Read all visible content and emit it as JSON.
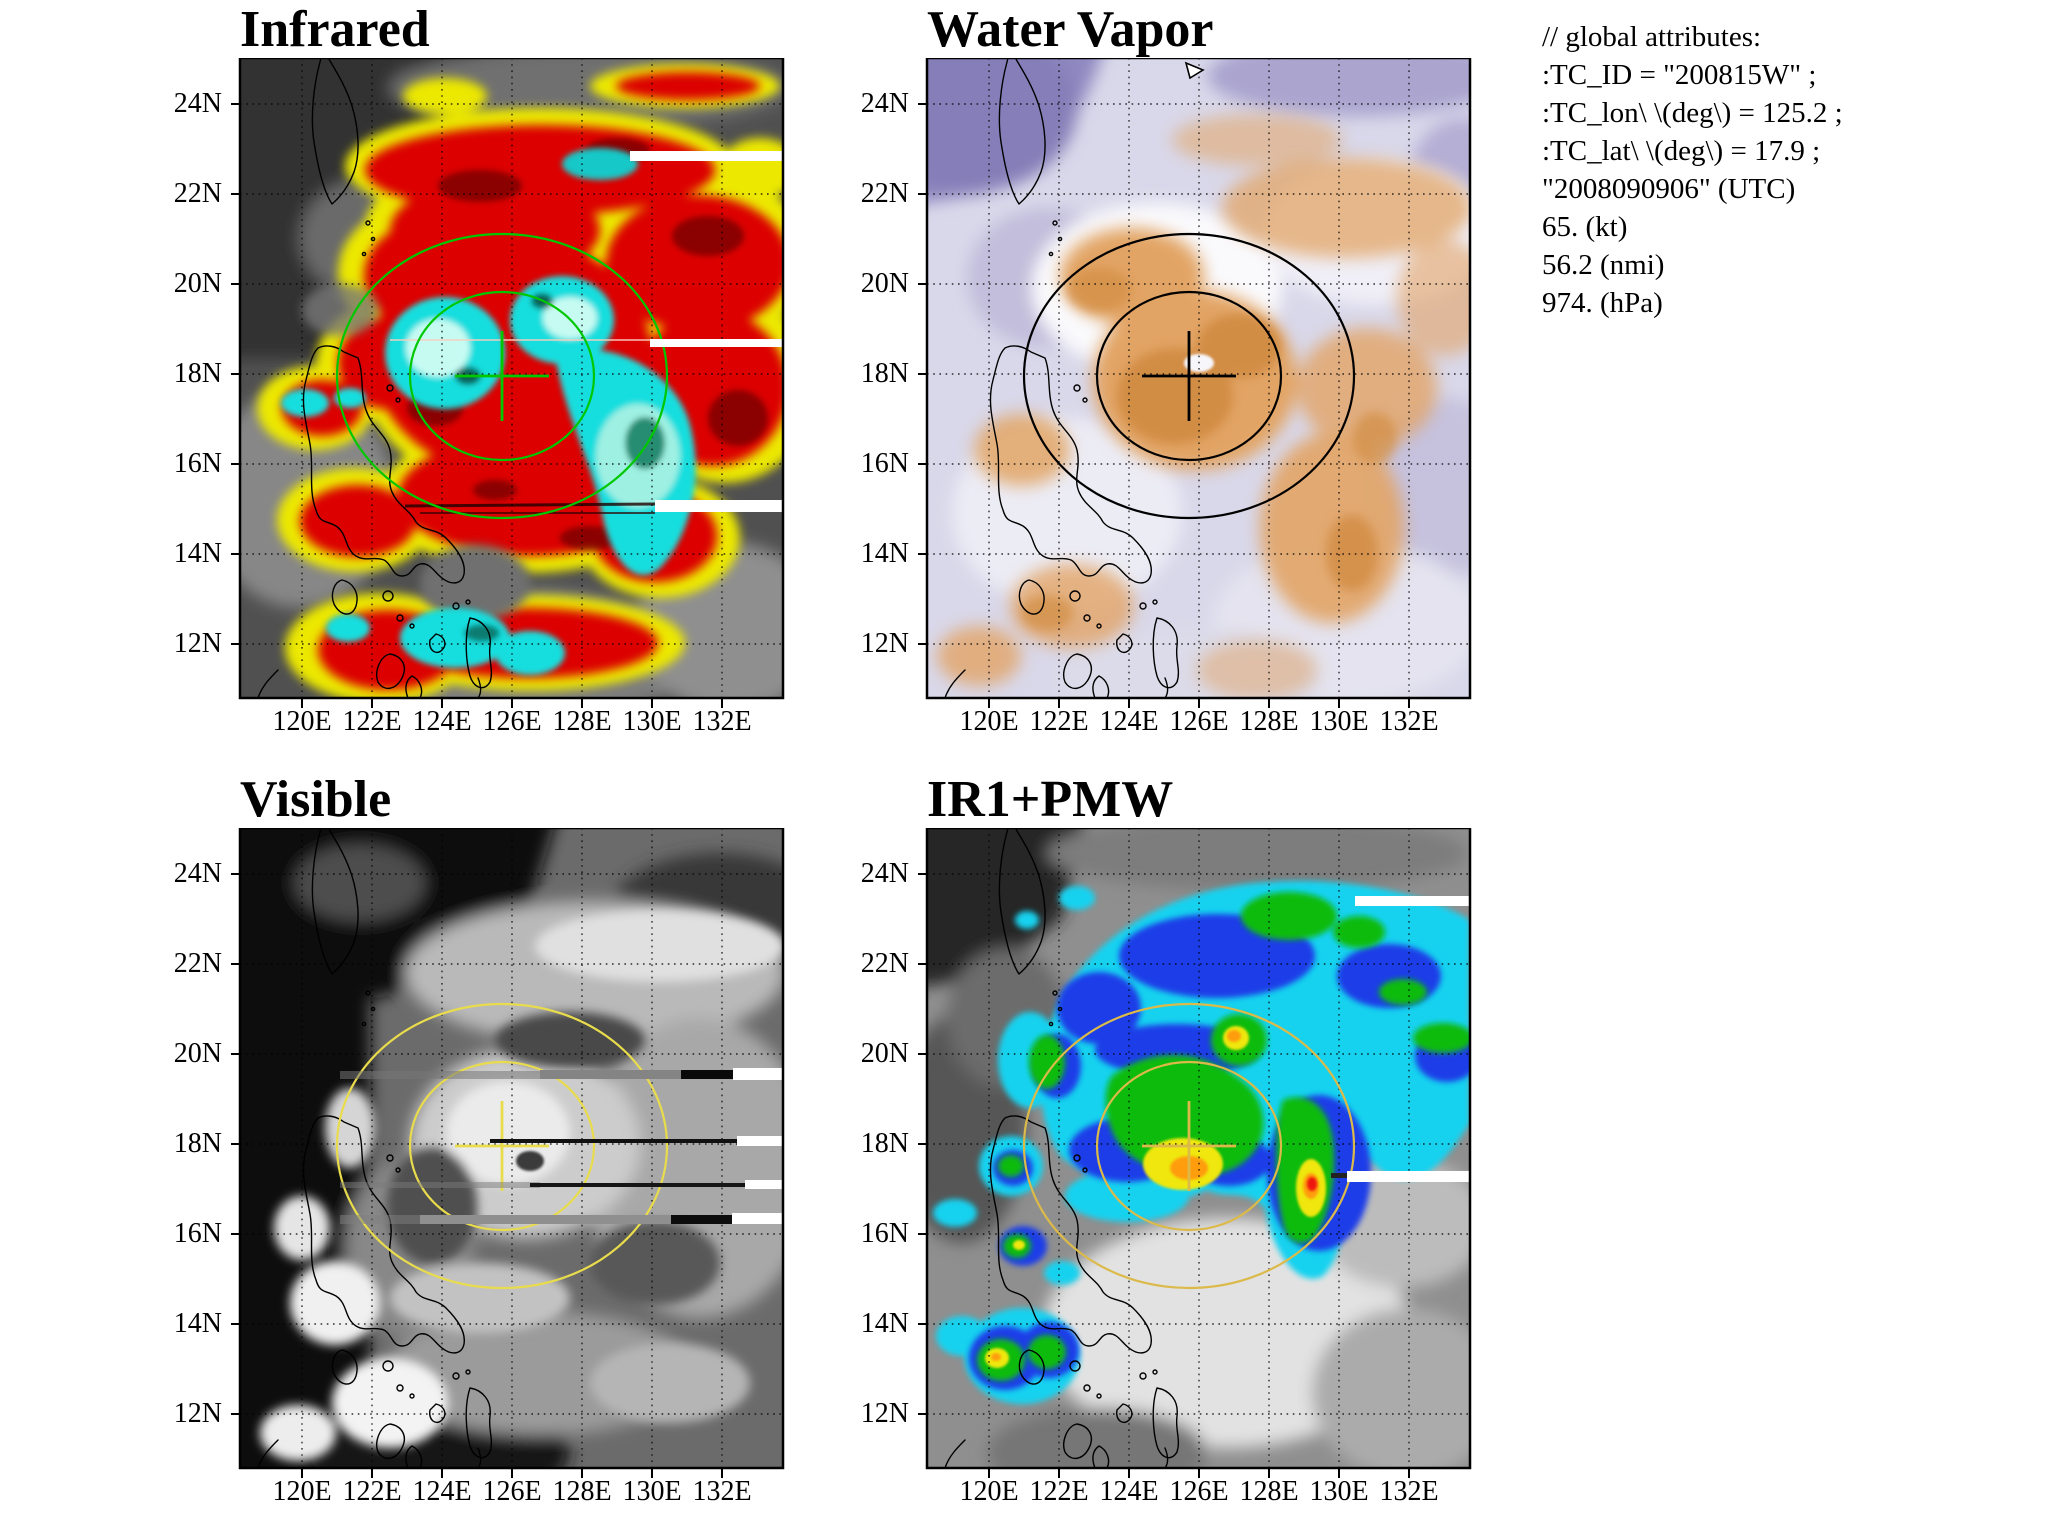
{
  "panels": {
    "infrared": {
      "title": "Infrared"
    },
    "water_vapor": {
      "title": "Water Vapor"
    },
    "visible": {
      "title": "Visible"
    },
    "ir1_pmw": {
      "title": "IR1+PMW"
    }
  },
  "axes": {
    "x_ticks": [
      "120E",
      "122E",
      "124E",
      "126E",
      "128E",
      "130E",
      "132E"
    ],
    "y_ticks": [
      "24N",
      "22N",
      "20N",
      "18N",
      "16N",
      "14N",
      "12N"
    ]
  },
  "attributes": {
    "lines": [
      "// global attributes:",
      ":TC_ID = \"200815W\" ;",
      ":TC_lon\\ \\(deg\\) = 125.2 ;",
      ":TC_lat\\ \\(deg\\) = 17.9 ;",
      "\"2008090906\" (UTC)",
      "65. (kt)",
      "56.2 (nmi)",
      "974. (hPa)"
    ]
  },
  "palette": {
    "infrared_ring": "#00c800",
    "water_vapor_ring": "#000000",
    "visible_ring": "#e9dc4c",
    "ir1_pmw_ring": "#dcba4a",
    "ir_cold_yellow": "#ece800",
    "ir_colder_red": "#dc0500",
    "ir_coldest_cyan": "#19dede",
    "wv_moist_orange": "#e2a465",
    "wv_dry_purple": "#9089c1",
    "pmw_rain_scale": [
      "#18d2ef",
      "#1f3de8",
      "#0dbb10",
      "#efe70c",
      "#ff9d0f",
      "#ee1407"
    ]
  }
}
